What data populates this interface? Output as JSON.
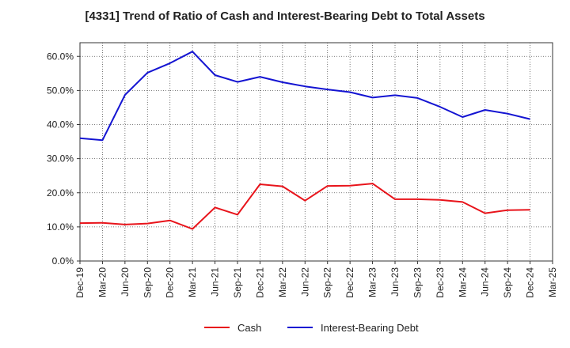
{
  "chart_data": {
    "type": "line",
    "title": "[4331]  Trend of Ratio of Cash and Interest-Bearing Debt to Total Assets",
    "xlabel": "",
    "ylabel": "",
    "x": [
      "Dec-19",
      "Mar-20",
      "Jun-20",
      "Sep-20",
      "Dec-20",
      "Mar-21",
      "Jun-21",
      "Sep-21",
      "Dec-21",
      "Mar-22",
      "Jun-22",
      "Sep-22",
      "Dec-22",
      "Mar-23",
      "Jun-23",
      "Sep-23",
      "Dec-23",
      "Mar-24",
      "Jun-24",
      "Sep-24",
      "Dec-24",
      "Mar-25"
    ],
    "ylim": [
      0,
      64
    ],
    "yticks": [
      0,
      10,
      20,
      30,
      40,
      50,
      60
    ],
    "ytick_labels": [
      "0.0%",
      "10.0%",
      "20.0%",
      "30.0%",
      "40.0%",
      "50.0%",
      "60.0%"
    ],
    "grid": true,
    "legend_position": "bottom",
    "series": [
      {
        "name": "Cash",
        "color": "#e8141b",
        "values": [
          11.1,
          11.2,
          10.7,
          11.0,
          11.9,
          9.4,
          15.7,
          13.6,
          22.5,
          21.9,
          17.7,
          22.0,
          22.1,
          22.7,
          18.1,
          18.1,
          17.9,
          17.3,
          14.0,
          14.9,
          15.0,
          null
        ]
      },
      {
        "name": "Interest-Bearing Debt",
        "color": "#1414d2",
        "values": [
          36.0,
          35.4,
          48.7,
          55.2,
          58.0,
          61.4,
          54.5,
          52.5,
          54.0,
          52.4,
          51.2,
          50.3,
          49.5,
          47.9,
          48.6,
          47.8,
          45.2,
          42.2,
          44.3,
          43.2,
          41.6,
          null
        ]
      }
    ]
  }
}
